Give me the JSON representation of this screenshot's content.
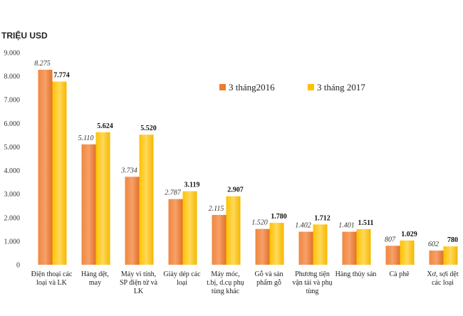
{
  "chart_data": {
    "type": "bar",
    "unit_label": "TRIỆU USD",
    "ylim": [
      0,
      9000
    ],
    "yticks": [
      "0",
      "1.000",
      "2.000",
      "3.000",
      "4.000",
      "5.000",
      "6.000",
      "7.000",
      "8.000",
      "9.000"
    ],
    "grid": false,
    "legend_position": "top-right",
    "categories": [
      [
        "Điện thoại các",
        "loại và LK"
      ],
      [
        "Hàng dệt,",
        "may"
      ],
      [
        "Máy vi tính,",
        "SP điện tử và",
        "LK"
      ],
      [
        "Giày dép các",
        "loại"
      ],
      [
        "Máy móc,",
        "t.bị, d.cụ phụ",
        "tùng khác"
      ],
      [
        "Gỗ và sản",
        "phẩm gỗ"
      ],
      [
        "Phương tiện",
        "vận tải và phụ",
        "tùng"
      ],
      [
        "Hàng thủy sản"
      ],
      [
        "Cà phê"
      ],
      [
        "Xơ, sợi dệt",
        "các loại"
      ]
    ],
    "series": [
      {
        "name": "3 tháng2016",
        "color": "#ED7D31",
        "values": [
          8275,
          5110,
          3734,
          2787,
          2115,
          1520,
          1402,
          1401,
          807,
          602
        ],
        "labels": [
          "8.275",
          "5.110",
          "3.734",
          "2.787",
          "2.115",
          "1.520",
          "1.402",
          "1.401",
          "807",
          "602"
        ]
      },
      {
        "name": "3 tháng 2017",
        "color": "#FFC000",
        "values": [
          7774,
          5624,
          5520,
          3119,
          2907,
          1780,
          1712,
          1511,
          1029,
          780
        ],
        "labels": [
          "7.774",
          "5.624",
          "5.520",
          "3.119",
          "2.907",
          "1.780",
          "1.712",
          "1.511",
          "1.029",
          "780"
        ]
      }
    ]
  }
}
